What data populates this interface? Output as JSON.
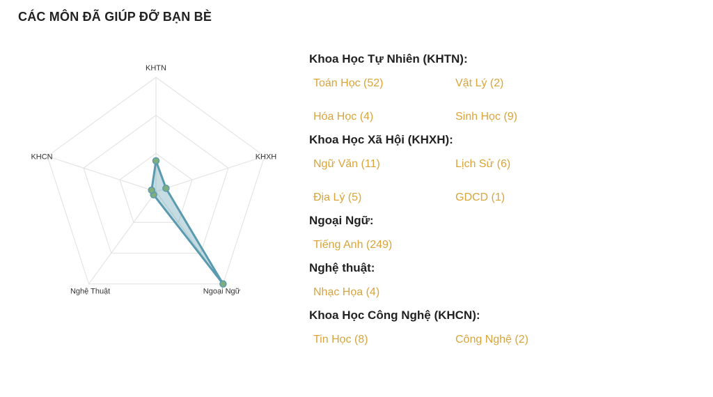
{
  "page": {
    "title": "CÁC MÔN ĐÃ GIÚP ĐỠ BẠN BÈ"
  },
  "colors": {
    "accent": "#d9a43a",
    "series": "#5a9ab0",
    "grid": "#e4e4e4"
  },
  "chart_data": {
    "type": "radar",
    "axes": [
      "KHTN",
      "KHXH",
      "Ngoại Ngữ",
      "Nghệ Thuật",
      "KHCN"
    ],
    "series": [
      {
        "values": [
          67,
          23,
          249,
          4,
          10
        ]
      }
    ],
    "max": 249,
    "grid_levels": 3
  },
  "groups": [
    {
      "title": "Khoa Học Tự Nhiên (KHTN):",
      "subjects": [
        "Toán Học (52)",
        "Vật Lý (2)",
        "Hóa Học (4)",
        "Sinh Học (9)"
      ]
    },
    {
      "title": "Khoa Học Xã Hội (KHXH):",
      "subjects": [
        "Ngữ Văn (11)",
        "Lịch Sử (6)",
        "Địa Lý (5)",
        "GDCD (1)"
      ]
    },
    {
      "title": "Ngoại Ngữ:",
      "subjects": [
        "Tiếng Anh (249)"
      ]
    },
    {
      "title": "Nghệ thuật:",
      "subjects": [
        "Nhạc Họa (4)"
      ]
    },
    {
      "title": "Khoa Học Công Nghệ (KHCN):",
      "subjects": [
        "Tin Học (8)",
        "Công Nghệ (2)"
      ]
    }
  ]
}
